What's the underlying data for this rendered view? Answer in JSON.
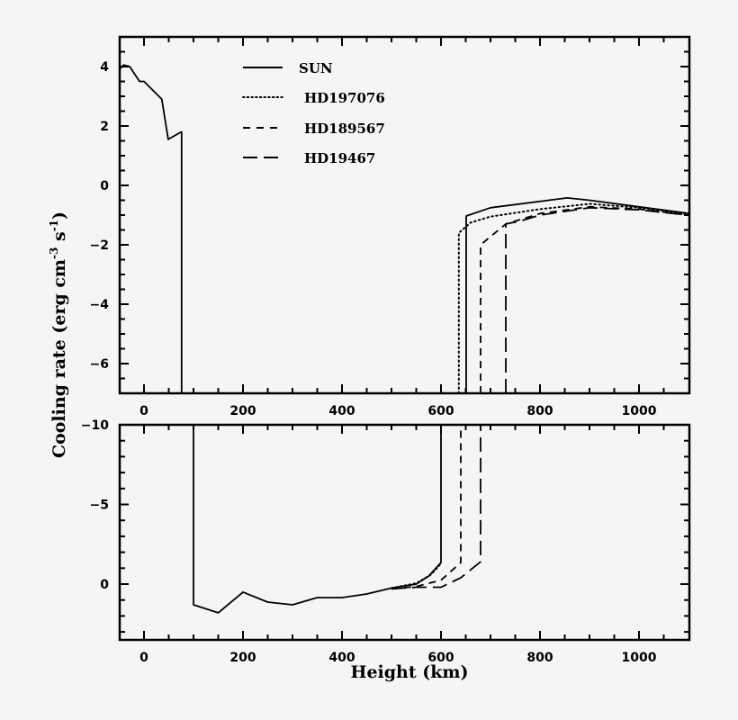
{
  "chart_data": [
    {
      "panel": "top",
      "type": "line",
      "title": "",
      "xlabel": "",
      "ylabel": "Cooling rate (erg cm^-3 s^-1)",
      "xlim": [
        -50,
        1100
      ],
      "ylim": [
        -7,
        5
      ],
      "xticks": [
        0,
        200,
        400,
        600,
        800,
        1000
      ],
      "yticks": [
        4,
        2,
        0,
        -2,
        -4,
        -6
      ],
      "xtick_labels": [
        "0",
        "200",
        "400",
        "600",
        "800",
        "1000"
      ],
      "ytick_labels": [
        "4",
        "2",
        "0",
        "-2",
        "-4",
        "-6"
      ],
      "grid": false,
      "legend_position": "upper-left-center",
      "series": [
        {
          "name": "SUN",
          "style": "solid",
          "x": [
            -50,
            -41,
            -29,
            -9,
            0,
            36,
            49,
            75,
            76,
            76,
            651,
            651,
            700,
            855,
            900,
            1000,
            1100
          ],
          "y": [
            3.9,
            4.05,
            4.0,
            3.5,
            3.5,
            2.9,
            1.55,
            1.8,
            1.8,
            -7,
            -7,
            -1.03,
            -0.75,
            -0.42,
            -0.5,
            -0.72,
            -0.94
          ]
        },
        {
          "name": "HD197076",
          "style": "dotted",
          "x": [
            636,
            636,
            660,
            700,
            800,
            900,
            1000,
            1100
          ],
          "y": [
            -7,
            -1.6,
            -1.25,
            -1.05,
            -0.8,
            -0.62,
            -0.75,
            -0.97
          ]
        },
        {
          "name": "HD189567",
          "style": "dashed",
          "x": [
            680,
            680,
            731,
            800,
            900,
            1000,
            1100
          ],
          "y": [
            -7,
            -2.0,
            -1.3,
            -0.95,
            -0.72,
            -0.8,
            -1.0
          ]
        },
        {
          "name": "HD19467",
          "style": "longdash",
          "x": [
            731,
            731,
            760,
            800,
            900,
            1000,
            1100
          ],
          "y": [
            -7,
            -1.3,
            -1.2,
            -1.0,
            -0.75,
            -0.82,
            -1.0
          ]
        }
      ]
    },
    {
      "panel": "bottom",
      "type": "line",
      "title": "",
      "xlabel": "Height (km)",
      "ylabel": "Cooling rate (erg cm^-3 s^-1)",
      "xlim": [
        -50,
        1100
      ],
      "ylim": [
        3.5,
        -10
      ],
      "y_inverted": true,
      "xticks": [
        0,
        200,
        400,
        600,
        800,
        1000
      ],
      "yticks": [
        -10,
        -5,
        0
      ],
      "xtick_labels": [
        "0",
        "200",
        "400",
        "600",
        "800",
        "1000"
      ],
      "ytick_labels": [
        "-10",
        "-5",
        "0"
      ],
      "grid": false,
      "series": [
        {
          "name": "SUN",
          "style": "solid",
          "x": [
            100,
            100,
            150,
            200,
            250,
            300,
            350,
            400,
            450,
            500,
            550,
            575,
            600,
            600
          ],
          "y": [
            -10,
            1.3,
            1.8,
            0.5,
            1.13,
            1.3,
            0.85,
            0.85,
            0.62,
            0.25,
            0.0,
            -0.5,
            -1.35,
            -10
          ]
        },
        {
          "name": "HD197076",
          "style": "dotted",
          "x": [
            500,
            550,
            580,
            600
          ],
          "y": [
            0.25,
            -0.05,
            -0.6,
            -1.3
          ]
        },
        {
          "name": "HD189567",
          "style": "dashed",
          "x": [
            500,
            550,
            600,
            640,
            640
          ],
          "y": [
            0.3,
            0.15,
            -0.25,
            -1.35,
            -10
          ]
        },
        {
          "name": "HD19467",
          "style": "longdash",
          "x": [
            500,
            550,
            600,
            640,
            680,
            680
          ],
          "y": [
            0.3,
            0.2,
            0.2,
            -0.4,
            -1.4,
            -10
          ]
        }
      ]
    }
  ],
  "legend": {
    "items": [
      {
        "label": "SUN",
        "style": "solid"
      },
      {
        "label": "HD197076",
        "style": "dotted"
      },
      {
        "label": "HD189567",
        "style": "dashed"
      },
      {
        "label": "HD19467",
        "style": "longdash"
      }
    ]
  },
  "axes": {
    "ylabel_main": "Cooling rate (erg cm",
    "ylabel_exp1": "-3",
    "ylabel_mid": " s",
    "ylabel_exp2": "-1",
    "ylabel_end": ")",
    "xlabel": "Height (km)"
  },
  "colors": {
    "line": "#000000",
    "background": "#f5f5f5"
  }
}
